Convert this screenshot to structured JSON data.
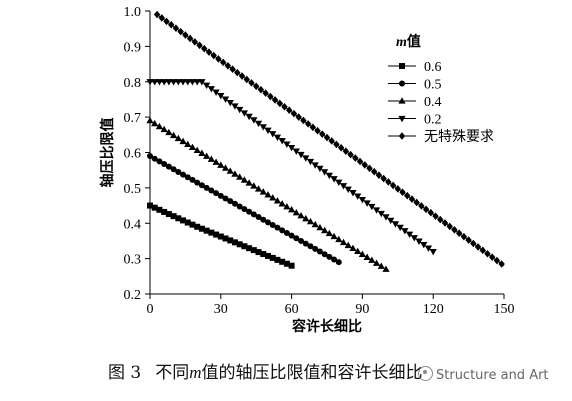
{
  "chart_data": {
    "type": "line",
    "xlabel": "容许长细比",
    "ylabel": "轴压比限值",
    "xlim": [
      0,
      150
    ],
    "ylim": [
      0.2,
      1.0
    ],
    "xticks": [
      0,
      30,
      60,
      90,
      120,
      150
    ],
    "yticks": [
      0.2,
      0.3,
      0.4,
      0.5,
      0.6,
      0.7,
      0.8,
      0.9,
      1.0
    ],
    "legend": {
      "title_italic": "m",
      "title_text": "值",
      "position": "top-right"
    },
    "series": [
      {
        "name": "0.6",
        "marker": "square",
        "points": [
          [
            0,
            0.45
          ],
          [
            20,
            0.39
          ],
          [
            60,
            0.28
          ]
        ]
      },
      {
        "name": "0.5",
        "marker": "circle",
        "points": [
          [
            0,
            0.59
          ],
          [
            80,
            0.29
          ]
        ]
      },
      {
        "name": "0.4",
        "marker": "triangle-up",
        "points": [
          [
            0,
            0.69
          ],
          [
            100,
            0.27
          ]
        ]
      },
      {
        "name": "0.2",
        "marker": "triangle-down",
        "points": [
          [
            0,
            0.8
          ],
          [
            22,
            0.8
          ],
          [
            120,
            0.32
          ]
        ]
      },
      {
        "name": "无特殊要求",
        "marker": "diamond",
        "points": [
          [
            3,
            0.99
          ],
          [
            150,
            0.28
          ]
        ]
      }
    ]
  },
  "caption": {
    "number": "图 3",
    "text_before": "不同",
    "italic": "m",
    "text_after": "值的轴压比限值和容许长细比"
  },
  "watermark": {
    "text": "Structure and Art"
  }
}
